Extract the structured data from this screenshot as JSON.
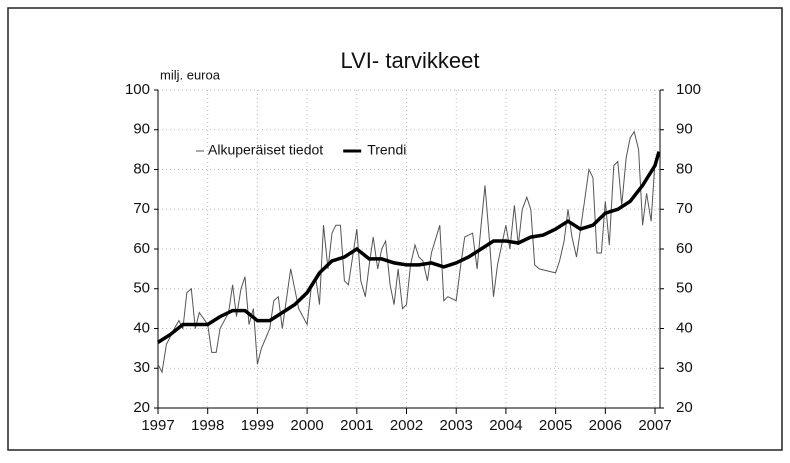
{
  "chart_data": {
    "type": "line",
    "title": "LVI- tarvikkeet",
    "y_label": "milj. euroa",
    "xlim": [
      1997,
      2007.1
    ],
    "xticks": [
      1997,
      1998,
      1999,
      2000,
      2001,
      2002,
      2003,
      2004,
      2005,
      2006,
      2007
    ],
    "ylim": [
      20,
      100
    ],
    "yticks": [
      20,
      30,
      40,
      50,
      60,
      70,
      80,
      90,
      100
    ],
    "grid": true,
    "series": [
      {
        "name": "Alkuperäiset tiedot",
        "color": "#555555",
        "x": [
          1997.0,
          1997.08,
          1997.17,
          1997.33,
          1997.42,
          1997.5,
          1997.58,
          1997.67,
          1997.75,
          1997.83,
          1998.0,
          1998.08,
          1998.17,
          1998.25,
          1998.42,
          1998.5,
          1998.58,
          1998.67,
          1998.75,
          1998.83,
          1998.92,
          1999.0,
          1999.08,
          1999.25,
          1999.33,
          1999.42,
          1999.5,
          1999.67,
          1999.75,
          1999.83,
          2000.0,
          2000.08,
          2000.17,
          2000.25,
          2000.33,
          2000.42,
          2000.5,
          2000.58,
          2000.67,
          2000.75,
          2000.83,
          2001.0,
          2001.08,
          2001.17,
          2001.25,
          2001.33,
          2001.42,
          2001.5,
          2001.58,
          2001.67,
          2001.75,
          2001.83,
          2001.92,
          2002.0,
          2002.08,
          2002.17,
          2002.25,
          2002.33,
          2002.42,
          2002.5,
          2002.67,
          2002.75,
          2002.83,
          2003.0,
          2003.08,
          2003.17,
          2003.33,
          2003.42,
          2003.5,
          2003.58,
          2003.67,
          2003.75,
          2003.83,
          2004.0,
          2004.08,
          2004.17,
          2004.25,
          2004.33,
          2004.42,
          2004.5,
          2004.58,
          2004.67,
          2005.0,
          2005.08,
          2005.17,
          2005.25,
          2005.33,
          2005.42,
          2005.58,
          2005.67,
          2005.75,
          2005.83,
          2005.92,
          2006.0,
          2006.08,
          2006.17,
          2006.25,
          2006.33,
          2006.42,
          2006.5,
          2006.58,
          2006.67,
          2006.75,
          2006.83,
          2006.92,
          2007.0
        ],
        "values": [
          31,
          29,
          36,
          40,
          42,
          40,
          49,
          50,
          40,
          44,
          41,
          34,
          34,
          40,
          44,
          51,
          43,
          50,
          53,
          41,
          45,
          31,
          35,
          40,
          47,
          48,
          40,
          55,
          50,
          45,
          41,
          50,
          53,
          46,
          66,
          55,
          64,
          66,
          66,
          52,
          51,
          65,
          52,
          48,
          56,
          63,
          55,
          60,
          62,
          51,
          46,
          55,
          45,
          46,
          56,
          61,
          58,
          57,
          52,
          59,
          66,
          47,
          48,
          47,
          55,
          63,
          64,
          55,
          66,
          76,
          62,
          48,
          56,
          66,
          60,
          71,
          61,
          70,
          73,
          70,
          56,
          55,
          54,
          57,
          62,
          70,
          63,
          58,
          72,
          80,
          78,
          59,
          59,
          72,
          61,
          81,
          82,
          71,
          83,
          88,
          89.5,
          85,
          66,
          74,
          67,
          82
        ]
      },
      {
        "name": "Trendi",
        "color": "#000000",
        "x": [
          1997.0,
          1997.25,
          1997.5,
          1998.0,
          1998.25,
          1998.5,
          1998.75,
          1999.0,
          1999.25,
          1999.5,
          1999.75,
          2000.0,
          2000.25,
          2000.5,
          2000.75,
          2001.0,
          2001.25,
          2001.5,
          2001.75,
          2002.0,
          2002.25,
          2002.5,
          2002.75,
          2003.0,
          2003.25,
          2003.5,
          2003.75,
          2004.0,
          2004.25,
          2004.5,
          2004.75,
          2005.0,
          2005.25,
          2005.5,
          2005.75,
          2006.0,
          2006.25,
          2006.5,
          2006.75,
          2007.0,
          2007.08
        ],
        "values": [
          36.5,
          38.5,
          41,
          41,
          43,
          44.5,
          44.5,
          42,
          42,
          44,
          46,
          49,
          54,
          57,
          58,
          60,
          57.5,
          57.5,
          56.5,
          56,
          56,
          56.5,
          55.5,
          56.5,
          58,
          60,
          62,
          62,
          61.5,
          63,
          63.5,
          65,
          67,
          65,
          66,
          69,
          70,
          72,
          76,
          81,
          84.5
        ]
      }
    ]
  }
}
